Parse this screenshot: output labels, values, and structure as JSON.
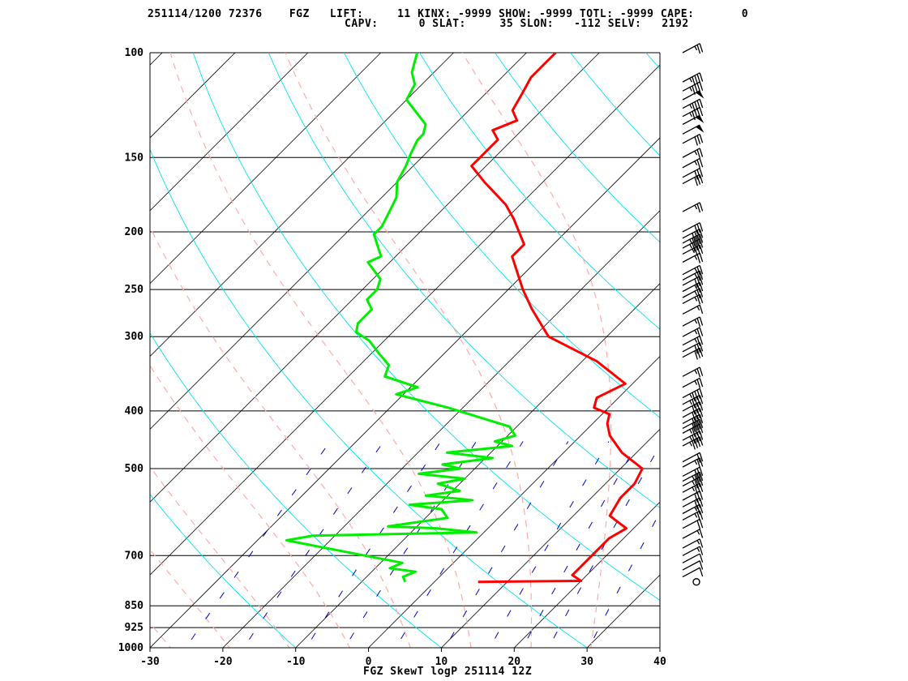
{
  "header": {
    "line1": "251114/1200 72376    FGZ   LIFT:     11 KINX: -9999 SHOW: -9999 TOTL: -9999 CAPE:       0",
    "line2": "CAPV:      0 SLAT:     35 SLON:   -112 SELV:   2192"
  },
  "caption": "FGZ SkewT logP 251114 12Z",
  "colors": {
    "temperature": "#ff0000",
    "dewpoint": "#00ee00",
    "isotherm": "#000000",
    "dry_adiabat": "#00e5ee",
    "moist_adiabat": "#ffaaaa",
    "mixing_ratio": "#0000cc",
    "frame": "#000000"
  },
  "chart_data": {
    "type": "line",
    "title": "FGZ SkewT logP 251114 12Z",
    "xlabel": "",
    "ylabel": "",
    "x_range": [
      -30,
      40
    ],
    "p_range": [
      1000,
      100
    ],
    "x_ticks": [
      -30,
      -20,
      -10,
      0,
      10,
      20,
      30,
      40
    ],
    "x_tick_labels": [
      "-30",
      "-20",
      "-10",
      "0",
      "10",
      "20",
      "30",
      "40"
    ],
    "p_ticks": [
      100,
      150,
      200,
      250,
      300,
      400,
      500,
      700,
      850,
      925,
      1000
    ],
    "p_tick_labels": [
      "100",
      "150",
      "200",
      "250",
      "300",
      "400",
      "500",
      "700",
      "850",
      "925",
      "1000"
    ],
    "series": [
      {
        "name": "",
        "role": "temperature",
        "points": [
          [
            775,
            6
          ],
          [
            772,
            20
          ],
          [
            755,
            18
          ],
          [
            700,
            18
          ],
          [
            655,
            18
          ],
          [
            630,
            19
          ],
          [
            615,
            17
          ],
          [
            600,
            15
          ],
          [
            560,
            14
          ],
          [
            530,
            14
          ],
          [
            500,
            13
          ],
          [
            470,
            8
          ],
          [
            440,
            4
          ],
          [
            420,
            2
          ],
          [
            405,
            1
          ],
          [
            395,
            -2
          ],
          [
            380,
            -3
          ],
          [
            360,
            -1
          ],
          [
            330,
            -8
          ],
          [
            300,
            -18
          ],
          [
            270,
            -24
          ],
          [
            250,
            -28
          ],
          [
            220,
            -34
          ],
          [
            210,
            -34
          ],
          [
            190,
            -39
          ],
          [
            180,
            -42
          ],
          [
            165,
            -48
          ],
          [
            155,
            -52
          ],
          [
            150,
            -52
          ],
          [
            145,
            -52
          ],
          [
            140,
            -52
          ],
          [
            135,
            -54
          ],
          [
            130,
            -52
          ],
          [
            125,
            -54
          ],
          [
            117,
            -55
          ],
          [
            110,
            -56
          ],
          [
            105,
            -56
          ],
          [
            100,
            -56
          ]
        ]
      },
      {
        "name": "",
        "role": "dewpoint",
        "points": [
          [
            775,
            -4
          ],
          [
            760,
            -5
          ],
          [
            745,
            -4
          ],
          [
            735,
            -8
          ],
          [
            720,
            -7
          ],
          [
            660,
            -26
          ],
          [
            648,
            -23
          ],
          [
            640,
            -1
          ],
          [
            630,
            -7
          ],
          [
            625,
            -14
          ],
          [
            605,
            -7
          ],
          [
            585,
            -9
          ],
          [
            575,
            -14
          ],
          [
            565,
            -6
          ],
          [
            555,
            -13
          ],
          [
            545,
            -9
          ],
          [
            530,
            -13
          ],
          [
            520,
            -10
          ],
          [
            510,
            -17
          ],
          [
            500,
            -12
          ],
          [
            492,
            -15
          ],
          [
            480,
            -9
          ],
          [
            470,
            -16
          ],
          [
            458,
            -8
          ],
          [
            450,
            -11
          ],
          [
            440,
            -9
          ],
          [
            425,
            -11
          ],
          [
            395,
            -22
          ],
          [
            375,
            -31
          ],
          [
            365,
            -29
          ],
          [
            350,
            -35
          ],
          [
            335,
            -36
          ],
          [
            320,
            -39
          ],
          [
            305,
            -42
          ],
          [
            295,
            -45
          ],
          [
            285,
            -46
          ],
          [
            270,
            -46
          ],
          [
            260,
            -48
          ],
          [
            250,
            -48
          ],
          [
            240,
            -49
          ],
          [
            225,
            -53
          ],
          [
            220,
            -52
          ],
          [
            202,
            -56
          ],
          [
            196,
            -56
          ],
          [
            185,
            -57
          ],
          [
            175,
            -58
          ],
          [
            165,
            -60
          ],
          [
            155,
            -61
          ],
          [
            148,
            -62
          ],
          [
            140,
            -63
          ],
          [
            137,
            -63
          ],
          [
            132,
            -64
          ],
          [
            120,
            -70
          ],
          [
            113,
            -71
          ],
          [
            108,
            -73
          ],
          [
            104,
            -74
          ],
          [
            100,
            -75
          ]
        ]
      }
    ],
    "wind_barbs": [
      {
        "p": 100,
        "speed": 25
      },
      {
        "p": 112,
        "speed": 45
      },
      {
        "p": 116,
        "speed": 45
      },
      {
        "p": 120,
        "speed": 50
      },
      {
        "p": 124,
        "speed": 45
      },
      {
        "p": 128,
        "speed": 45
      },
      {
        "p": 132,
        "speed": 50
      },
      {
        "p": 137,
        "speed": 50
      },
      {
        "p": 142,
        "speed": 30
      },
      {
        "p": 150,
        "speed": 25
      },
      {
        "p": 156,
        "speed": 25
      },
      {
        "p": 162,
        "speed": 30
      },
      {
        "p": 166,
        "speed": 30
      },
      {
        "p": 185,
        "speed": 25
      },
      {
        "p": 200,
        "speed": 30
      },
      {
        "p": 205,
        "speed": 40
      },
      {
        "p": 209,
        "speed": 45
      },
      {
        "p": 213,
        "speed": 45
      },
      {
        "p": 218,
        "speed": 35
      },
      {
        "p": 225,
        "speed": 25
      },
      {
        "p": 236,
        "speed": 25
      },
      {
        "p": 241,
        "speed": 25
      },
      {
        "p": 246,
        "speed": 30
      },
      {
        "p": 252,
        "speed": 25
      },
      {
        "p": 258,
        "speed": 25
      },
      {
        "p": 264,
        "speed": 25
      },
      {
        "p": 275,
        "speed": 15
      },
      {
        "p": 288,
        "speed": 25
      },
      {
        "p": 300,
        "speed": 25
      },
      {
        "p": 310,
        "speed": 25
      },
      {
        "p": 318,
        "speed": 30
      },
      {
        "p": 325,
        "speed": 30
      },
      {
        "p": 350,
        "speed": 25
      },
      {
        "p": 365,
        "speed": 25
      },
      {
        "p": 380,
        "speed": 45
      },
      {
        "p": 390,
        "speed": 45
      },
      {
        "p": 400,
        "speed": 40
      },
      {
        "p": 410,
        "speed": 40
      },
      {
        "p": 420,
        "speed": 40
      },
      {
        "p": 428,
        "speed": 40
      },
      {
        "p": 436,
        "speed": 45
      },
      {
        "p": 448,
        "speed": 45
      },
      {
        "p": 458,
        "speed": 45
      },
      {
        "p": 487,
        "speed": 20
      },
      {
        "p": 497,
        "speed": 25
      },
      {
        "p": 515,
        "speed": 30
      },
      {
        "p": 525,
        "speed": 35
      },
      {
        "p": 535,
        "speed": 35
      },
      {
        "p": 548,
        "speed": 35
      },
      {
        "p": 565,
        "speed": 30
      },
      {
        "p": 580,
        "speed": 30
      },
      {
        "p": 595,
        "speed": 25
      },
      {
        "p": 610,
        "speed": 25
      },
      {
        "p": 630,
        "speed": 20
      },
      {
        "p": 655,
        "speed": 15
      },
      {
        "p": 680,
        "speed": 15
      },
      {
        "p": 700,
        "speed": 15
      },
      {
        "p": 720,
        "speed": 10
      },
      {
        "p": 740,
        "speed": 10
      },
      {
        "p": 760,
        "speed": 10
      },
      {
        "p": 775,
        "speed": 0
      }
    ],
    "grid": true
  }
}
